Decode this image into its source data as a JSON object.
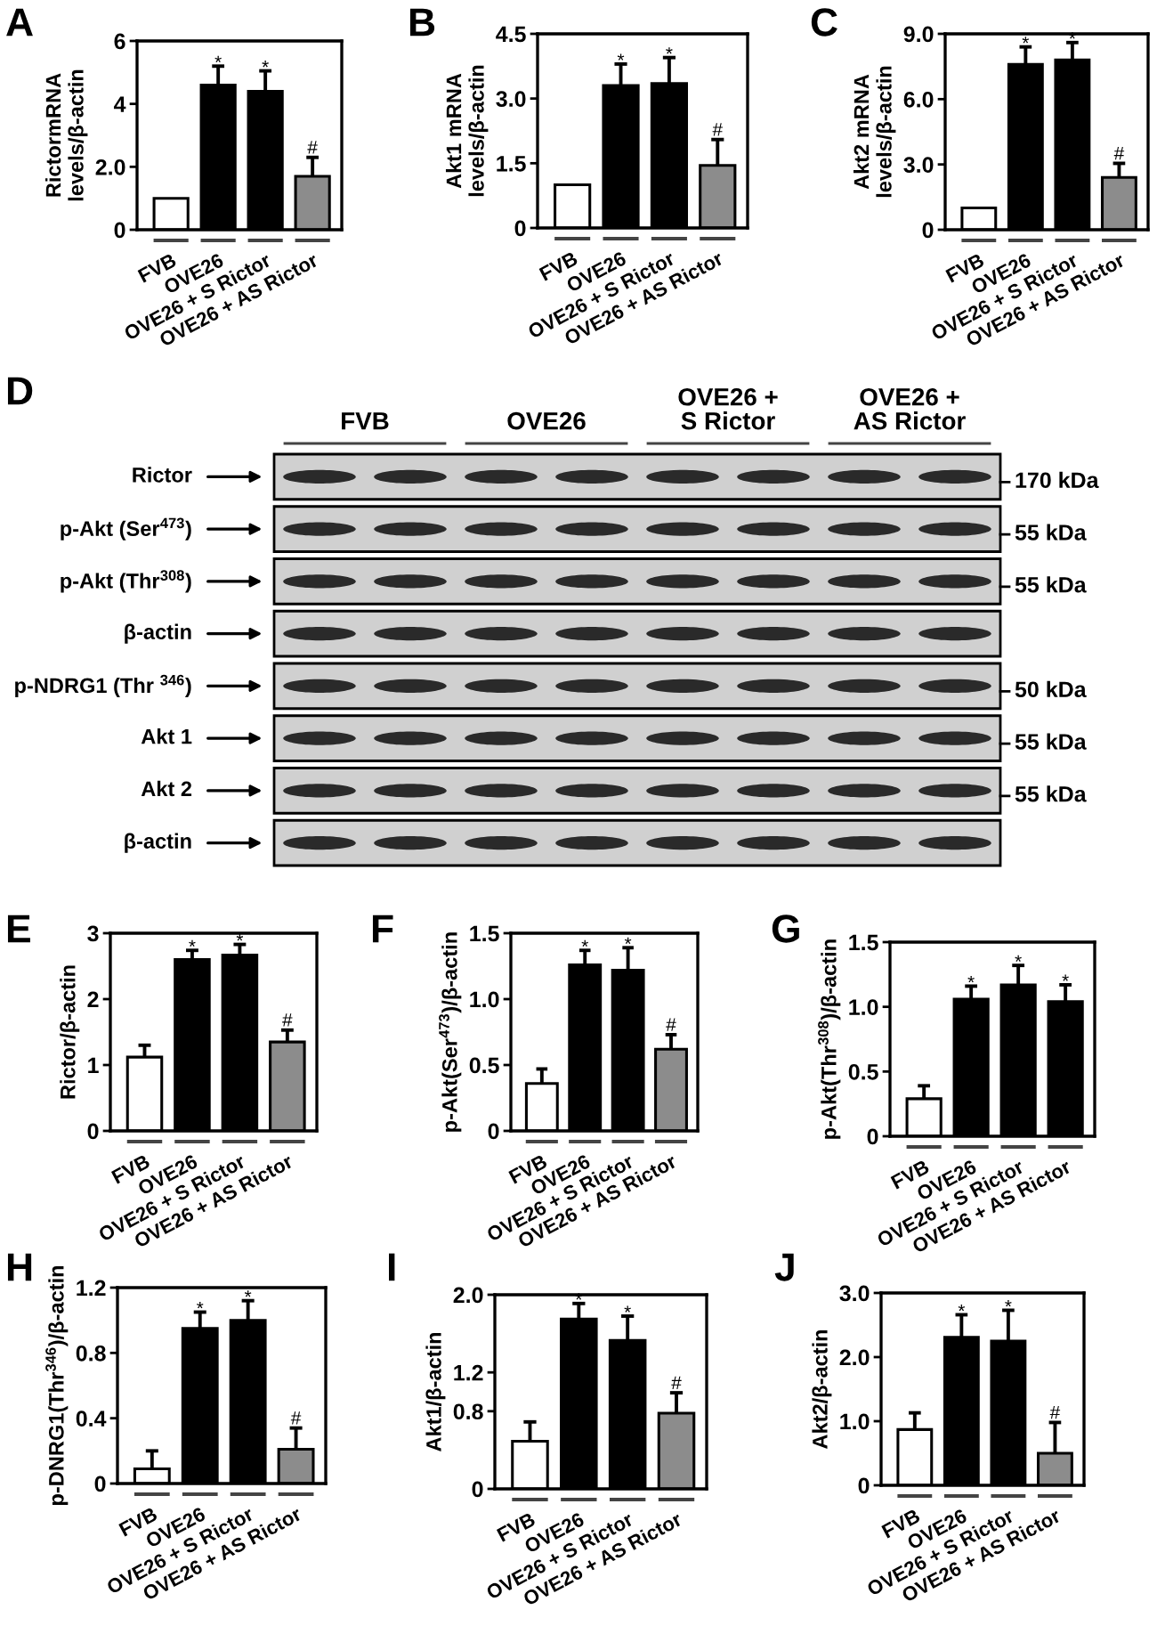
{
  "chart_data": [
    {
      "type": "bar",
      "title": "A",
      "ylabel": "RictormRNA\nlevels/β-actin",
      "categories": [
        "FVB",
        "OVE26",
        "OVE26 + S Rictor",
        "OVE26 + AS Rictor"
      ],
      "values": [
        1.0,
        4.6,
        4.4,
        1.7
      ],
      "colors": [
        "#ffffff",
        "#000000",
        "#000000",
        "#8c8c8c"
      ],
      "errors": [
        null,
        [
          4.6,
          5.2
        ],
        [
          4.4,
          5.05
        ],
        [
          1.7,
          2.3
        ]
      ],
      "ylim": [
        0,
        6
      ],
      "yticks": [
        0,
        {
          "value": 2,
          "label": "2.0"
        },
        4,
        6
      ],
      "annotations": [
        {
          "text": "*",
          "x": "OVE26",
          "y": 5.2
        },
        {
          "text": "*",
          "x": "OVE26 + S Rictor",
          "y": 5.05
        },
        {
          "text": "#",
          "x": "OVE26 + AS Rictor",
          "y": 2.3
        }
      ]
    },
    {
      "type": "bar",
      "title": "B",
      "ylabel": "Akt1 mRNA\nlevels/β-actin",
      "categories": [
        "FVB",
        "OVE26",
        "OVE26 + S Rictor",
        "OVE26 + AS Rictor"
      ],
      "values": [
        1.0,
        3.3,
        3.35,
        1.45
      ],
      "colors": [
        "#ffffff",
        "#000000",
        "#000000",
        "#8c8c8c"
      ],
      "errors": [
        null,
        [
          3.3,
          3.8
        ],
        [
          3.35,
          3.95
        ],
        [
          1.45,
          2.05
        ]
      ],
      "ylim": [
        0,
        4.5
      ],
      "yticks": [
        0,
        1.5,
        {
          "value": 3,
          "label": "3.0"
        },
        4.5
      ],
      "annotations": [
        {
          "text": "*",
          "x": "OVE26",
          "y": 3.8
        },
        {
          "text": "*",
          "x": "OVE26 + S Rictor",
          "y": 3.95
        },
        {
          "text": "#",
          "x": "OVE26 + AS Rictor",
          "y": 2.05
        }
      ]
    },
    {
      "type": "bar",
      "title": "C",
      "ylabel": "Akt2 mRNA\nlevels/β-actin",
      "categories": [
        "FVB",
        "OVE26",
        "OVE26 + S Rictor",
        "OVE26 + AS Rictor"
      ],
      "values": [
        1.0,
        7.6,
        7.8,
        2.4
      ],
      "colors": [
        "#ffffff",
        "#000000",
        "#000000",
        "#8c8c8c"
      ],
      "errors": [
        null,
        [
          7.6,
          8.4
        ],
        [
          7.8,
          8.6
        ],
        [
          2.4,
          3.05
        ]
      ],
      "ylim": [
        0,
        9
      ],
      "yticks": [
        0,
        {
          "value": 3,
          "label": "3.0"
        },
        {
          "value": 6,
          "label": "6.0"
        },
        {
          "value": 9,
          "label": "9.0"
        }
      ],
      "annotations": [
        {
          "text": "*",
          "x": "OVE26",
          "y": 8.4
        },
        {
          "text": "*",
          "x": "OVE26 + S Rictor",
          "y": 8.6
        },
        {
          "text": "#",
          "x": "OVE26 + AS Rictor",
          "y": 3.05
        }
      ]
    },
    {
      "type": "other",
      "title": "D",
      "categories": [
        "FVB",
        "OVE26",
        "OVE26 +\nS Rictor",
        "OVE26 +\nAS Rictor"
      ],
      "y_categories": [
        "Rictor",
        "p-Akt (Ser$^{473}$)",
        "p-Akt (Thr$^{308}$)",
        "β-actin",
        "p-NDRG1 (Thr $^{346}$)",
        "Akt 1",
        "Akt 2",
        "β-actin"
      ],
      "y2_categories": [
        "170 kDa",
        "55 kDa",
        "55 kDa",
        null,
        "50 kDa",
        "55 kDa",
        "55 kDa",
        null
      ]
    },
    {
      "type": "bar",
      "title": "E",
      "ylabel": "Rictor/β-actin",
      "categories": [
        "FVB",
        "OVE26",
        "OVE26 + S Rictor",
        "OVE26 + AS Rictor"
      ],
      "values": [
        1.12,
        2.6,
        2.67,
        1.35
      ],
      "colors": [
        "#ffffff",
        "#000000",
        "#000000",
        "#8c8c8c"
      ],
      "errors": [
        [
          1.12,
          1.3
        ],
        [
          2.6,
          2.74
        ],
        [
          2.67,
          2.83
        ],
        [
          1.35,
          1.53
        ]
      ],
      "ylim": [
        0,
        3
      ],
      "yticks": [
        0,
        1,
        2,
        3
      ],
      "annotations": [
        {
          "text": "*",
          "x": "OVE26",
          "y": 2.74
        },
        {
          "text": "*",
          "x": "OVE26 + S Rictor",
          "y": 2.83
        },
        {
          "text": "#",
          "x": "OVE26 + AS Rictor",
          "y": 1.53
        }
      ]
    },
    {
      "type": "bar",
      "title": "F",
      "ylabel": "p-Akt(Ser$^{473}$)/β-actin",
      "categories": [
        "FVB",
        "OVE26",
        "OVE26 + S Rictor",
        "OVE26 + AS Rictor"
      ],
      "values": [
        0.36,
        1.26,
        1.22,
        0.62
      ],
      "colors": [
        "#ffffff",
        "#000000",
        "#000000",
        "#8c8c8c"
      ],
      "errors": [
        [
          0.36,
          0.47
        ],
        [
          1.26,
          1.37
        ],
        [
          1.22,
          1.39
        ],
        [
          0.62,
          0.73
        ]
      ],
      "ylim": [
        0,
        1.5
      ],
      "yticks": [
        0,
        0.5,
        {
          "value": 1,
          "label": "1.0"
        },
        1.5
      ],
      "annotations": [
        {
          "text": "*",
          "x": "OVE26",
          "y": 1.37
        },
        {
          "text": "*",
          "x": "OVE26 + S Rictor",
          "y": 1.39
        },
        {
          "text": "#",
          "x": "OVE26 + AS Rictor",
          "y": 0.73
        }
      ]
    },
    {
      "type": "bar",
      "title": "G",
      "ylabel": "p-Akt(Thr$^{308}$)/β-actin",
      "categories": [
        "FVB",
        "OVE26",
        "OVE26 + S Rictor",
        "OVE26 + AS Rictor"
      ],
      "values": [
        0.29,
        1.06,
        1.17,
        1.04
      ],
      "colors": [
        "#ffffff",
        "#000000",
        "#000000",
        "#000000"
      ],
      "errors": [
        [
          0.29,
          0.39
        ],
        [
          1.06,
          1.16
        ],
        [
          1.17,
          1.32
        ],
        [
          1.04,
          1.17
        ]
      ],
      "ylim": [
        0,
        1.5
      ],
      "yticks": [
        0,
        0.5,
        {
          "value": 1,
          "label": "1.0"
        },
        1.5
      ],
      "annotations": [
        {
          "text": "*",
          "x": "OVE26",
          "y": 1.16
        },
        {
          "text": "*",
          "x": "OVE26 + S Rictor",
          "y": 1.32
        },
        {
          "text": "*",
          "x": "OVE26 + AS Rictor",
          "y": 1.17
        }
      ]
    },
    {
      "type": "bar",
      "title": "H",
      "ylabel": "p-DNRG1(Thr$^{346}$)/β-actin",
      "categories": [
        "FVB",
        "OVE26",
        "OVE26 + S Rictor",
        "OVE26 + AS Rictor"
      ],
      "values": [
        0.09,
        0.95,
        1.0,
        0.21
      ],
      "colors": [
        "#ffffff",
        "#000000",
        "#000000",
        "#8c8c8c"
      ],
      "errors": [
        [
          0.09,
          0.2
        ],
        [
          0.95,
          1.05
        ],
        [
          1.0,
          1.12
        ],
        [
          0.21,
          0.34
        ]
      ],
      "ylim": [
        0,
        1.2
      ],
      "yticks": [
        0,
        0.4,
        0.8,
        1.2
      ],
      "annotations": [
        {
          "text": "*",
          "x": "OVE26",
          "y": 1.05
        },
        {
          "text": "*",
          "x": "OVE26 + S Rictor",
          "y": 1.12
        },
        {
          "text": "#",
          "x": "OVE26 + AS Rictor",
          "y": 0.34
        }
      ]
    },
    {
      "type": "bar",
      "title": "I",
      "ylabel": "Akt1/β-actin",
      "categories": [
        "FVB",
        "OVE26",
        "OVE26 + S Rictor",
        "OVE26 + AS Rictor"
      ],
      "values": [
        0.49,
        1.75,
        1.53,
        0.78
      ],
      "colors": [
        "#ffffff",
        "#000000",
        "#000000",
        "#8c8c8c"
      ],
      "errors": [
        [
          0.49,
          0.69
        ],
        [
          1.75,
          1.91
        ],
        [
          1.53,
          1.78
        ],
        [
          0.78,
          0.99
        ]
      ],
      "ylim": [
        0,
        2.0
      ],
      "yticks": [
        0,
        0.8,
        1.2,
        {
          "value": 2.0,
          "label": "2.0"
        }
      ],
      "annotations": [
        {
          "text": "*",
          "x": "OVE26",
          "y": 1.91
        },
        {
          "text": "*",
          "x": "OVE26 + S Rictor",
          "y": 1.78
        },
        {
          "text": "#",
          "x": "OVE26 + AS Rictor",
          "y": 0.99
        }
      ]
    },
    {
      "type": "bar",
      "title": "J",
      "ylabel": "Akt2/β-actin",
      "categories": [
        "FVB",
        "OVE26",
        "OVE26 + S Rictor",
        "OVE26 + AS Rictor"
      ],
      "values": [
        0.87,
        2.31,
        2.25,
        0.5
      ],
      "colors": [
        "#ffffff",
        "#000000",
        "#000000",
        "#8c8c8c"
      ],
      "errors": [
        [
          0.87,
          1.13
        ],
        [
          2.31,
          2.66
        ],
        [
          2.25,
          2.73
        ],
        [
          0.5,
          0.98
        ]
      ],
      "ylim": [
        0,
        3.0
      ],
      "yticks": [
        0,
        {
          "value": 1,
          "label": "1.0"
        },
        {
          "value": 2,
          "label": "2.0"
        },
        {
          "value": 3,
          "label": "3.0"
        }
      ],
      "annotations": [
        {
          "text": "*",
          "x": "OVE26",
          "y": 2.66
        },
        {
          "text": "*",
          "x": "OVE26 + S Rictor",
          "y": 2.73
        },
        {
          "text": "#",
          "x": "OVE26 + AS Rictor",
          "y": 0.98
        }
      ]
    }
  ]
}
